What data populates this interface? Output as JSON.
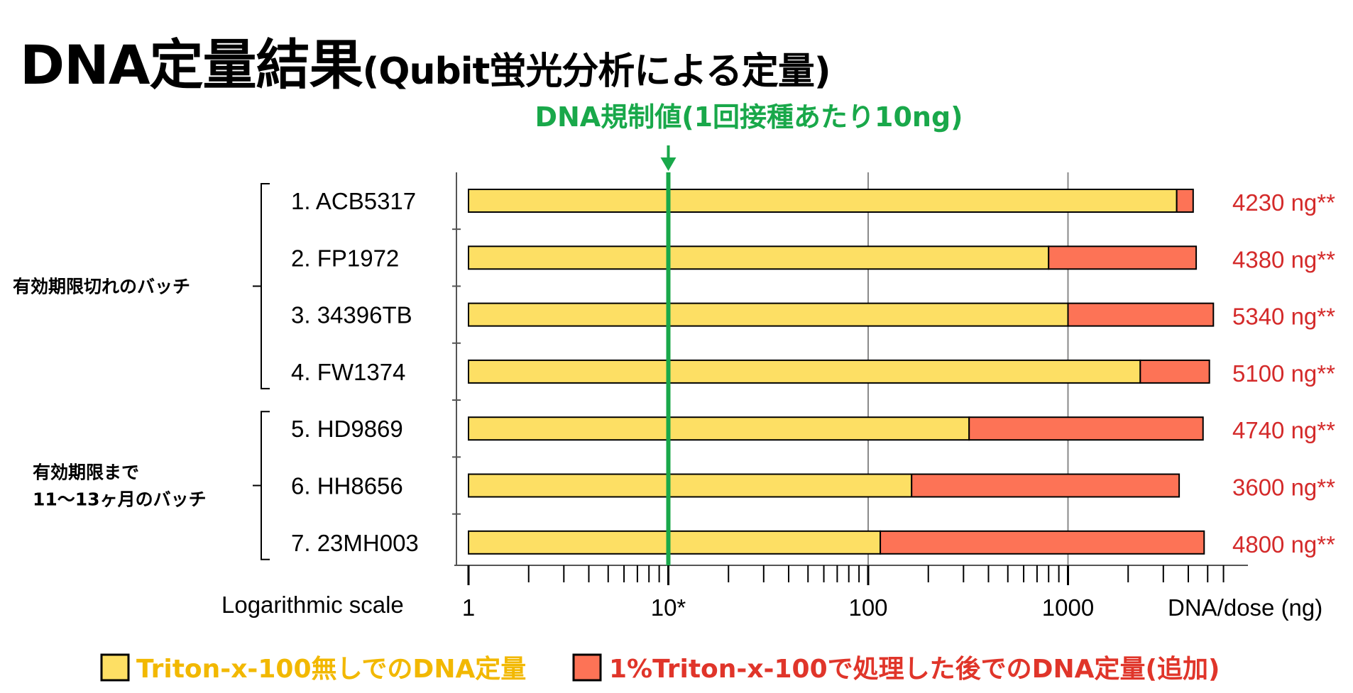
{
  "title": {
    "main": "DNA定量結果",
    "sub": "(Qubit蛍光分析による定量)"
  },
  "chart_data": {
    "type": "bar",
    "orientation": "horizontal",
    "stacked": true,
    "x_scale": "log",
    "xlim": [
      1,
      8000
    ],
    "x_ticks": [
      {
        "value": 1,
        "label": "1"
      },
      {
        "value": 10,
        "label": "10*"
      },
      {
        "value": 100,
        "label": "100"
      },
      {
        "value": 1000,
        "label": "1000"
      }
    ],
    "xlabel_left": "Logarithmic scale",
    "xlabel_right": "DNA/dose (ng)",
    "grid_x": true,
    "categories": [
      "1. ACB5317",
      "2. FP1972",
      "3. 34396TB",
      "4. FW1374",
      "5. HD9869",
      "6. HH8656",
      "7. 23MH003"
    ],
    "series": [
      {
        "name": "Triton-x-100無しでのDNA定量",
        "color": "#fddf64",
        "values": [
          3500,
          800,
          1000,
          2300,
          320,
          165,
          115
        ]
      },
      {
        "name": "1%Triton-x-100で処理した後でのDNA定量(追加)",
        "color": "#fd7356",
        "values": [
          730,
          3580,
          4340,
          2800,
          4420,
          3435,
          4685
        ]
      }
    ],
    "totals": [
      "4230 ng**",
      "4380 ng**",
      "5340 ng**",
      "5100 ng**",
      "4740 ng**",
      "3600 ng**",
      "4800 ng**"
    ],
    "threshold": {
      "value": 10,
      "label": "DNA規制値(1回接種あたり10ng)",
      "color": "#19a84a"
    },
    "groups": [
      {
        "label_lines": [
          "有効期限切れのバッチ"
        ],
        "rows": [
          0,
          3
        ]
      },
      {
        "label_lines": [
          "有効期限まで",
          "11〜13ヶ月のバッチ"
        ],
        "rows": [
          4,
          6
        ]
      }
    ],
    "legend_placement": "bottom"
  }
}
